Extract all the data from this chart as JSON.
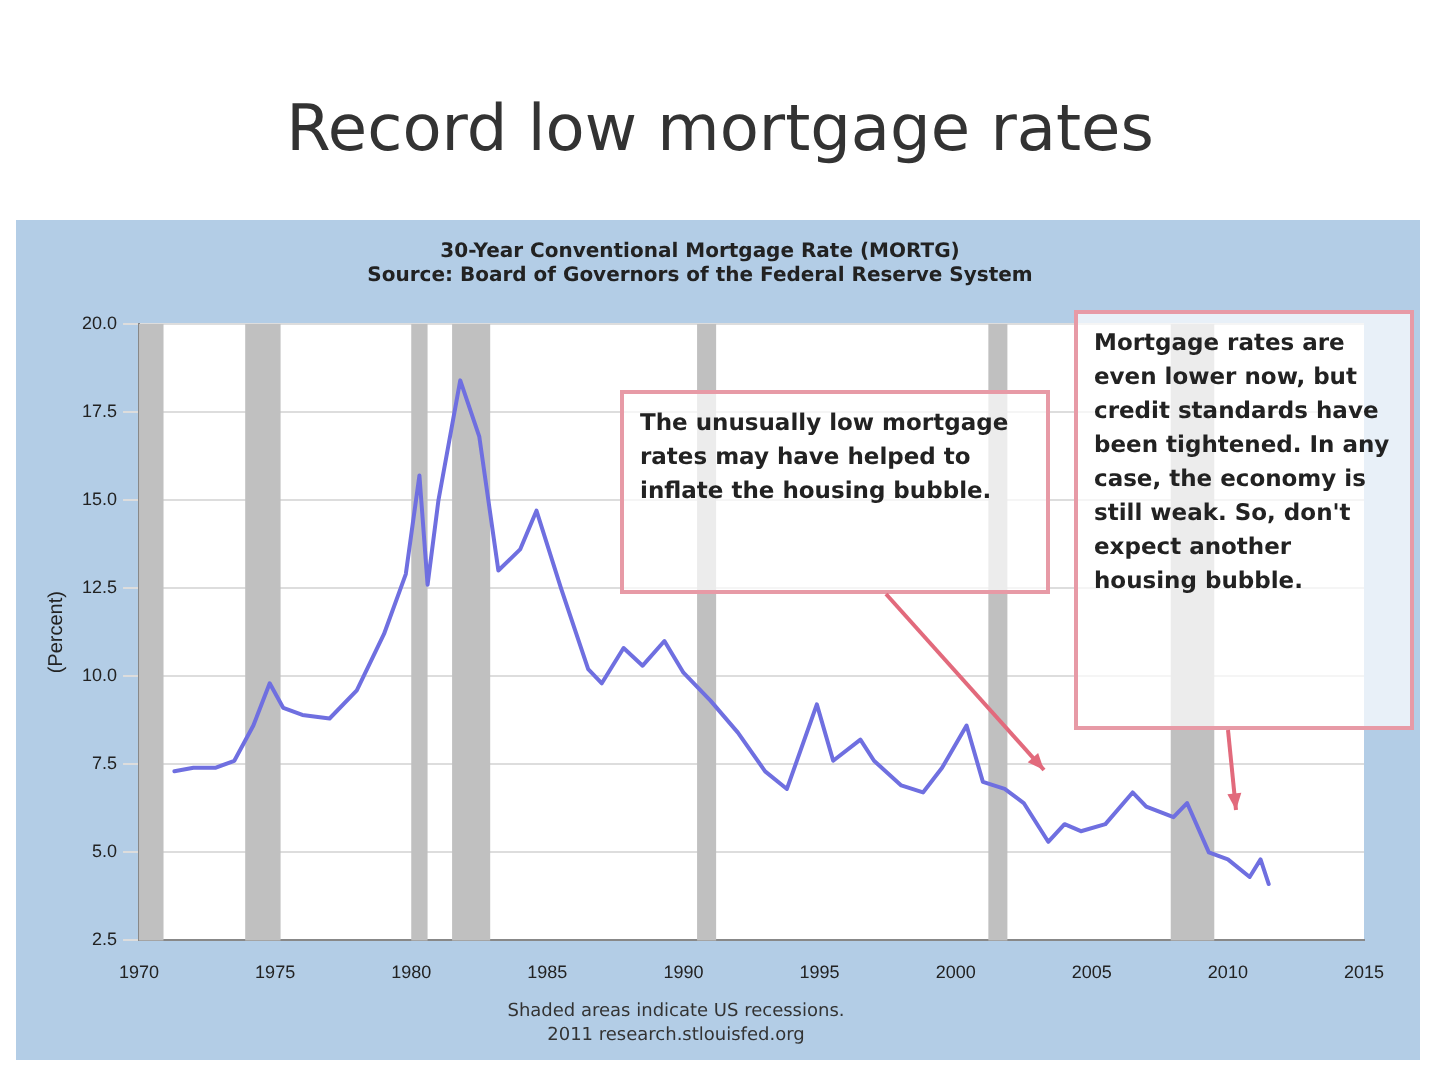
{
  "chart_data": {
    "type": "line",
    "title": "Record low mortgage rates",
    "subtitle": "30-Year Conventional Mortgage Rate (MORTG)\nSource: Board of Governors of the Federal Reserve System",
    "ylabel": "(Percent)",
    "series": [
      {
        "color": "#6f6fe0",
        "x": [
          1971.3,
          1972,
          1972.8,
          1973.5,
          1974.2,
          1974.8,
          1975.3,
          1976,
          1977,
          1978,
          1979,
          1979.8,
          1980.3,
          1980.6,
          1981,
          1981.8,
          1982.5,
          1983.2,
          1984,
          1984.6,
          1985.5,
          1986.5,
          1987,
          1987.8,
          1988.5,
          1989.3,
          1990,
          1991,
          1992,
          1993,
          1993.8,
          1994.9,
          1995.5,
          1996.5,
          1997,
          1998,
          1998.8,
          1999.5,
          2000.4,
          2001,
          2001.8,
          2002.5,
          2003.4,
          2004,
          2004.6,
          2005.5,
          2006.5,
          2007,
          2008,
          2008.5,
          2009.3,
          2010,
          2010.8,
          2011.2,
          2011.5
        ],
        "values": [
          7.3,
          7.4,
          7.4,
          7.6,
          8.6,
          9.8,
          9.1,
          8.9,
          8.8,
          9.6,
          11.2,
          12.9,
          15.7,
          12.6,
          15.0,
          18.4,
          16.8,
          13.0,
          13.6,
          14.7,
          12.5,
          10.2,
          9.8,
          10.8,
          10.3,
          11.0,
          10.1,
          9.3,
          8.4,
          7.3,
          6.8,
          9.2,
          7.6,
          8.2,
          7.6,
          6.9,
          6.7,
          7.4,
          8.6,
          7.0,
          6.8,
          6.4,
          5.3,
          5.8,
          5.6,
          5.8,
          6.7,
          6.3,
          6.0,
          6.4,
          5.0,
          4.8,
          4.3,
          4.8,
          4.1
        ]
      }
    ],
    "xlim": [
      1970,
      2015
    ],
    "xticks": [
      1970,
      1975,
      1980,
      1985,
      1990,
      1995,
      2000,
      2005,
      2010,
      2015
    ],
    "ylim": [
      2.5,
      20
    ],
    "yticks": [
      2.5,
      {
        "value": 5,
        "label": "5.0"
      },
      7.5,
      {
        "value": 10,
        "label": "10.0"
      },
      12.5,
      {
        "value": 15,
        "label": "15.0"
      },
      17.5,
      {
        "value": 20,
        "label": "20.0"
      }
    ],
    "bands": [
      {
        "axis": "x",
        "from": 1970,
        "to": 1970.9,
        "color": "#c0c0c0"
      },
      {
        "axis": "x",
        "from": 1973.9,
        "to": 1975.2,
        "color": "#c0c0c0"
      },
      {
        "axis": "x",
        "from": 1980.0,
        "to": 1980.6,
        "color": "#c0c0c0"
      },
      {
        "axis": "x",
        "from": 1981.5,
        "to": 1982.9,
        "color": "#c0c0c0"
      },
      {
        "axis": "x",
        "from": 1990.5,
        "to": 1991.2,
        "color": "#c0c0c0"
      },
      {
        "axis": "x",
        "from": 2001.2,
        "to": 2001.9,
        "color": "#c0c0c0"
      },
      {
        "axis": "x",
        "from": 2007.9,
        "to": 2009.5,
        "color": "#c0c0c0"
      }
    ],
    "annotations": [
      "The unusually low mortgage rates may have helped to inflate the housing bubble.",
      "Mortgage rates are even lower now, but credit standards have been tightened. In any case, the economy is still weak. So, don't expect another housing bubble.",
      "Shaded areas indicate US recessions.",
      "2011 research.stlouisfed.org"
    ],
    "grid": "y",
    "legend": false,
    "marker": "none",
    "line_style": "solid"
  }
}
